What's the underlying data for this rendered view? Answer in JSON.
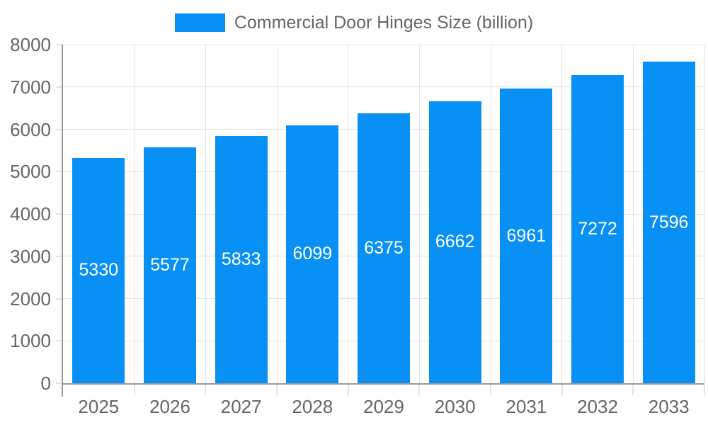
{
  "chart_data": {
    "type": "bar",
    "title": "Commercial Door Hinges Size (billion)",
    "categories": [
      "2025",
      "2026",
      "2027",
      "2028",
      "2029",
      "2030",
      "2031",
      "2032",
      "2033"
    ],
    "values": [
      5330,
      5577,
      5833,
      6099,
      6375,
      6662,
      6961,
      7272,
      7596
    ],
    "xlabel": "",
    "ylabel": "",
    "ylim": [
      0,
      8000
    ],
    "yticks": [
      0,
      1000,
      2000,
      3000,
      4000,
      5000,
      6000,
      7000,
      8000
    ],
    "grid": true,
    "legend_position": "top",
    "value_label_position": "inside-center",
    "colors": {
      "bar": "#0990F5",
      "grid_line": "#E4E4E4",
      "axis_line": "#999999",
      "tick_text": "#666666",
      "legend_text": "#666666",
      "value_label_text": "#FFFFFF",
      "background": "#FFFFFF"
    }
  }
}
